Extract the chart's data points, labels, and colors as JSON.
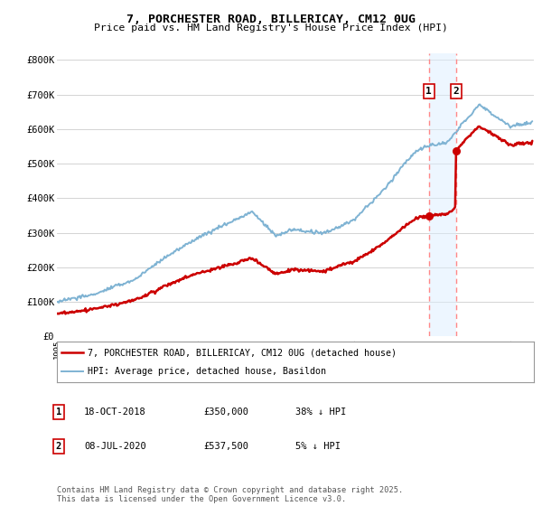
{
  "title": "7, PORCHESTER ROAD, BILLERICAY, CM12 0UG",
  "subtitle": "Price paid vs. HM Land Registry's House Price Index (HPI)",
  "ylabel_ticks": [
    "£0",
    "£100K",
    "£200K",
    "£300K",
    "£400K",
    "£500K",
    "£600K",
    "£700K",
    "£800K"
  ],
  "ytick_values": [
    0,
    100000,
    200000,
    300000,
    400000,
    500000,
    600000,
    700000,
    800000
  ],
  "ylim": [
    0,
    820000
  ],
  "xlim_start": 1995.0,
  "xlim_end": 2025.5,
  "transactions": [
    {
      "date": 2018.79,
      "price": 350000,
      "label": "1"
    },
    {
      "date": 2020.52,
      "price": 537500,
      "label": "2"
    }
  ],
  "legend_entries": [
    {
      "label": "7, PORCHESTER ROAD, BILLERICAY, CM12 0UG (detached house)",
      "color": "#cc0000",
      "lw": 1.8
    },
    {
      "label": "HPI: Average price, detached house, Basildon",
      "color": "#7fb3d3",
      "lw": 1.4
    }
  ],
  "table_rows": [
    {
      "num": "1",
      "date": "18-OCT-2018",
      "price": "£350,000",
      "hpi": "38% ↓ HPI"
    },
    {
      "num": "2",
      "date": "08-JUL-2020",
      "price": "£537,500",
      "hpi": "5% ↓ HPI"
    }
  ],
  "footnote": "Contains HM Land Registry data © Crown copyright and database right 2025.\nThis data is licensed under the Open Government Licence v3.0.",
  "background_color": "#ffffff",
  "plot_bg_color": "#ffffff",
  "grid_color": "#cccccc",
  "dashed_line_color": "#ff8888",
  "highlight_bg": "#ddeeff"
}
